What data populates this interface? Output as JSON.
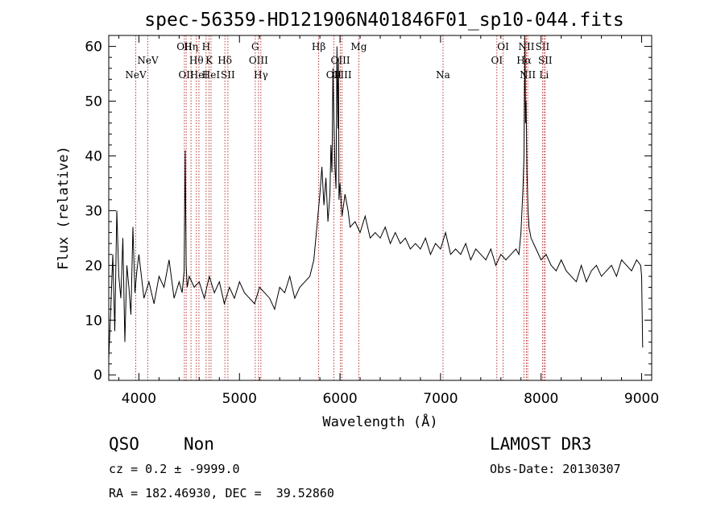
{
  "chart_data": {
    "type": "line",
    "title": "spec-56359-HD121906N401846F01_sp10-044.fits",
    "xlabel": "Wavelength (Å)",
    "ylabel": "Flux (relative)",
    "xlim": [
      3700,
      9100
    ],
    "ylim": [
      -1,
      62
    ],
    "x_ticks": [
      4000,
      5000,
      6000,
      7000,
      8000,
      9000
    ],
    "y_ticks": [
      0,
      10,
      20,
      30,
      40,
      50,
      60
    ],
    "grid": false,
    "series": [
      {
        "name": "spectrum",
        "x": [
          3700,
          3720,
          3740,
          3760,
          3780,
          3800,
          3820,
          3840,
          3860,
          3880,
          3900,
          3920,
          3940,
          3960,
          3980,
          4000,
          4050,
          4100,
          4150,
          4200,
          4250,
          4300,
          4350,
          4400,
          4430,
          4450,
          4460,
          4470,
          4480,
          4500,
          4550,
          4600,
          4650,
          4700,
          4750,
          4800,
          4850,
          4900,
          4950,
          5000,
          5050,
          5100,
          5150,
          5200,
          5250,
          5300,
          5350,
          5400,
          5450,
          5500,
          5550,
          5600,
          5650,
          5700,
          5740,
          5760,
          5780,
          5800,
          5820,
          5840,
          5860,
          5880,
          5900,
          5910,
          5920,
          5930,
          5940,
          5950,
          5960,
          5970,
          5980,
          5985,
          5990,
          6000,
          6020,
          6050,
          6080,
          6100,
          6150,
          6200,
          6250,
          6300,
          6350,
          6400,
          6450,
          6500,
          6550,
          6600,
          6650,
          6700,
          6750,
          6800,
          6850,
          6900,
          6950,
          7000,
          7050,
          7100,
          7150,
          7200,
          7250,
          7300,
          7350,
          7400,
          7450,
          7500,
          7550,
          7600,
          7650,
          7700,
          7750,
          7780,
          7800,
          7820,
          7830,
          7840,
          7845,
          7850,
          7855,
          7860,
          7870,
          7880,
          7900,
          7950,
          8000,
          8050,
          8100,
          8150,
          8200,
          8250,
          8300,
          8350,
          8400,
          8450,
          8500,
          8550,
          8600,
          8650,
          8700,
          8750,
          8800,
          8850,
          8900,
          8950,
          8990,
          9000,
          9010
        ],
        "y": [
          3,
          12,
          22,
          8,
          30,
          18,
          14,
          25,
          6,
          20,
          16,
          11,
          27,
          15,
          19,
          22,
          14,
          17,
          13,
          18,
          16,
          21,
          14,
          17,
          15,
          19,
          41,
          20,
          16,
          18,
          16,
          17,
          14,
          18,
          15,
          17,
          13,
          16,
          14,
          17,
          15,
          14,
          13,
          16,
          15,
          14,
          12,
          16,
          15,
          18,
          14,
          16,
          17,
          18,
          21,
          25,
          29,
          33,
          38,
          31,
          36,
          28,
          33,
          42,
          37,
          56,
          46,
          38,
          34,
          60,
          45,
          58,
          32,
          35,
          29,
          33,
          30,
          27,
          28,
          26,
          29,
          25,
          26,
          25,
          27,
          24,
          26,
          24,
          25,
          23,
          24,
          23,
          25,
          22,
          24,
          23,
          26,
          22,
          23,
          22,
          24,
          21,
          23,
          22,
          21,
          23,
          20,
          22,
          21,
          22,
          23,
          22,
          26,
          34,
          40,
          62,
          46,
          50,
          44,
          37,
          30,
          27,
          25,
          23,
          21,
          22,
          20,
          19,
          21,
          19,
          18,
          17,
          20,
          17,
          19,
          20,
          18,
          19,
          20,
          18,
          21,
          20,
          19,
          21,
          20,
          18,
          5
        ]
      }
    ],
    "lines": [
      {
        "label": "NeV",
        "wl": 3969,
        "row": 3
      },
      {
        "label": "NeV",
        "wl": 4089,
        "row": 2
      },
      {
        "label": "OII",
        "wl": 4452,
        "row": 1
      },
      {
        "label": "OII",
        "wl": 4470,
        "row": 3
      },
      {
        "label": "Hη",
        "wl": 4518,
        "row": 1
      },
      {
        "label": "Hθ",
        "wl": 4571,
        "row": 2
      },
      {
        "label": "HeI",
        "wl": 4597,
        "row": 3
      },
      {
        "label": "H",
        "wl": 4668,
        "row": 1
      },
      {
        "label": "K",
        "wl": 4698,
        "row": 2
      },
      {
        "label": "HeI",
        "wl": 4717,
        "row": 3
      },
      {
        "label": "Hδ",
        "wl": 4855,
        "row": 2
      },
      {
        "label": "SII",
        "wl": 4885,
        "row": 3
      },
      {
        "label": "G",
        "wl": 5157,
        "row": 1
      },
      {
        "label": "OIII",
        "wl": 5189,
        "row": 2
      },
      {
        "label": "Hγ",
        "wl": 5213,
        "row": 3
      },
      {
        "label": "Hβ",
        "wl": 5788,
        "row": 1
      },
      {
        "label": "OII",
        "wl": 5939,
        "row": 3
      },
      {
        "label": "OIII",
        "wl": 6004,
        "row": 2
      },
      {
        "label": "OIII",
        "wl": 6020,
        "row": 3
      },
      {
        "label": "Mg",
        "wl": 6187,
        "row": 1
      },
      {
        "label": "Na",
        "wl": 7025,
        "row": 3
      },
      {
        "label": "OI",
        "wl": 7560,
        "row": 2
      },
      {
        "label": "OI",
        "wl": 7622,
        "row": 1
      },
      {
        "label": "Hα",
        "wl": 7830,
        "row": 2
      },
      {
        "label": "NII",
        "wl": 7854,
        "row": 1
      },
      {
        "label": "NII",
        "wl": 7867,
        "row": 3
      },
      {
        "label": "SII",
        "wl": 8014,
        "row": 1
      },
      {
        "label": "SII",
        "wl": 8041,
        "row": 2
      },
      {
        "label": "Li",
        "wl": 8029,
        "row": 3
      }
    ]
  },
  "info": {
    "class": "QSO",
    "subclass": "Non",
    "survey": "LAMOST DR3",
    "cz": "cz = 0.2 ± -9999.0",
    "obs_date": "Obs-Date: 20130307",
    "radec": "RA = 182.46930, DEC =  39.52860"
  }
}
